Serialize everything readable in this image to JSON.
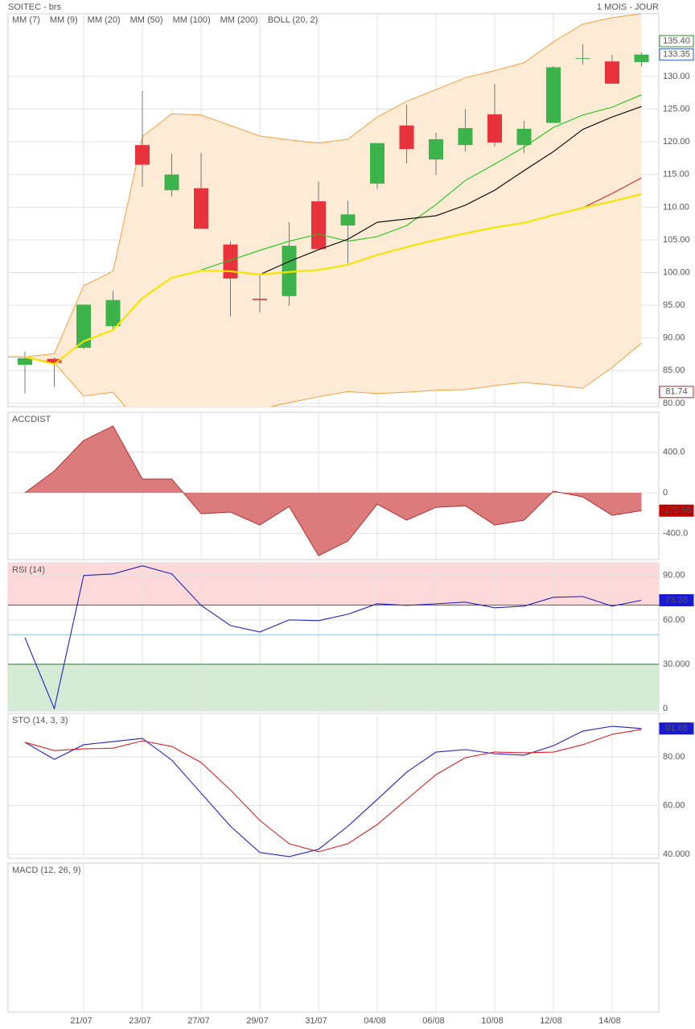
{
  "chart_data": [
    {
      "type": "candlestick",
      "title": "SOITEC - brs",
      "subtitle": "1 MOIS - JOUR",
      "categories": [
        null,
        null,
        "21/07",
        null,
        "23/07",
        null,
        "27/07",
        null,
        "29/07",
        null,
        "31/07",
        null,
        "04/08",
        null,
        "06/08",
        null,
        "10/08",
        null,
        "12/08",
        null,
        "14/08",
        null
      ],
      "open": [
        85.9,
        86.8,
        88.5,
        91.8,
        119.5,
        112.6,
        112.9,
        104.3,
        96.0,
        96.4,
        110.9,
        107.2,
        113.6,
        122.5,
        117.3,
        119.5,
        124.2,
        119.5,
        122.9,
        132.7,
        132.3,
        132.2
      ],
      "high": [
        87.9,
        87.0,
        95.1,
        97.2,
        127.8,
        118.2,
        118.3,
        104.8,
        99.7,
        107.7,
        113.9,
        111.0,
        119.8,
        125.7,
        121.4,
        125.0,
        128.9,
        123.2,
        131.6,
        134.9,
        133.3,
        133.7
      ],
      "low": [
        81.5,
        82.5,
        88.3,
        91.2,
        113.1,
        111.6,
        106.7,
        93.3,
        93.9,
        94.9,
        103.5,
        101.4,
        112.8,
        116.7,
        114.9,
        118.5,
        119.3,
        118.3,
        122.9,
        131.8,
        128.9,
        131.5
      ],
      "close": [
        86.9,
        86.2,
        95.1,
        95.8,
        116.5,
        115.0,
        106.7,
        99.1,
        95.8,
        104.1,
        103.6,
        108.9,
        119.8,
        118.9,
        120.4,
        122.1,
        119.9,
        122.0,
        131.4,
        132.8,
        128.9,
        133.35
      ],
      "up_color": "#3cb44b",
      "down_color": "#e8323c",
      "series": [
        {
          "name": "MM (7)",
          "color": "#19c919",
          "values": [
            null,
            null,
            null,
            null,
            null,
            null,
            100.4,
            101.9,
            103.4,
            104.8,
            105.9,
            104.8,
            105.5,
            107.2,
            110.4,
            114.1,
            116.6,
            119.2,
            122.2,
            124.1,
            125.3,
            127.2
          ]
        },
        {
          "name": "MM (9)",
          "color": "#000000",
          "values": [
            null,
            null,
            null,
            null,
            null,
            null,
            null,
            null,
            99.7,
            101.7,
            103.5,
            105.1,
            107.7,
            108.2,
            108.7,
            110.3,
            112.6,
            115.6,
            118.5,
            121.9,
            123.8,
            125.4
          ]
        },
        {
          "name": "MM (20)",
          "color": "#e02020",
          "values": [
            null,
            null,
            null,
            null,
            null,
            null,
            null,
            null,
            null,
            null,
            null,
            null,
            null,
            null,
            null,
            null,
            null,
            null,
            null,
            109.9,
            112.1,
            114.5
          ]
        },
        {
          "name": "MM (50)",
          "color": "#1a1ae0",
          "values": [
            null,
            null,
            null,
            null,
            null,
            null,
            null,
            null,
            null,
            null,
            null,
            null,
            null,
            null,
            null,
            null,
            null,
            null,
            null,
            null,
            null,
            null
          ]
        },
        {
          "name": "MM (100)",
          "color": "#e020e0",
          "values": [
            null,
            null,
            null,
            null,
            null,
            null,
            null,
            null,
            null,
            null,
            null,
            null,
            null,
            null,
            null,
            null,
            null,
            null,
            null,
            null,
            null,
            null
          ]
        },
        {
          "name": "MM (200)",
          "color": "#f5e400",
          "values": [
            87.1,
            86.0,
            89.5,
            91.2,
            96.1,
            99.2,
            100.3,
            100.2,
            99.7,
            100.1,
            100.4,
            101.2,
            102.7,
            103.9,
            105.0,
            106.0,
            106.9,
            107.6,
            108.8,
            109.9,
            110.9,
            112.0
          ]
        }
      ],
      "bands": {
        "name": "BOLL (20, 2)",
        "color": "#f5a040",
        "fill": "#fdebd6",
        "upper": [
          87.1,
          87.6,
          98.0,
          100.2,
          120.8,
          124.3,
          124.1,
          122.5,
          120.9,
          120.3,
          119.8,
          120.4,
          123.8,
          126.2,
          128.0,
          129.8,
          130.9,
          132.1,
          135.3,
          138.0,
          139.0,
          139.6
        ],
        "lower": [
          87.1,
          86.2,
          81.1,
          81.7,
          76.4,
          74.6,
          75.2,
          77.7,
          79.1,
          80.1,
          81.0,
          81.8,
          81.5,
          81.7,
          82.0,
          82.1,
          82.7,
          83.2,
          82.8,
          82.3,
          85.5,
          89.2
        ]
      },
      "ylim": [
        79.5,
        139.6
      ],
      "yticks": [
        {
          "value": 80,
          "label": "80.00"
        },
        {
          "value": 85,
          "label": "85.00"
        },
        {
          "value": 90,
          "label": "90.00"
        },
        {
          "value": 95,
          "label": "95.00"
        },
        {
          "value": 100,
          "label": "100.00"
        },
        {
          "value": 105,
          "label": "105.00"
        },
        {
          "value": 110,
          "label": "110.00"
        },
        {
          "value": 115,
          "label": "115.00"
        },
        {
          "value": 120,
          "label": "120.00"
        },
        {
          "value": 125,
          "label": "125.00"
        },
        {
          "value": 130,
          "label": "130.00"
        }
      ],
      "value_boxes": [
        {
          "value": 135.4,
          "label": "135.40",
          "color": "#2e8b2e",
          "filled": false
        },
        {
          "value": 133.35,
          "label": "133.35",
          "color": "#3050c0",
          "filled": false
        },
        {
          "value": 81.74,
          "label": "81.74",
          "color": "#c02020",
          "filled": false
        }
      ],
      "grid": true
    },
    {
      "type": "area",
      "title": "ACCDIST",
      "title_color": "#b03030",
      "color": "#b03030",
      "fill": "#dc7b7b",
      "values": [
        0,
        214,
        515,
        657,
        135,
        135,
        -206,
        -190,
        -317,
        -135,
        -618,
        -475,
        -111,
        -269,
        -143,
        -127,
        -317,
        -269,
        16,
        -40,
        -222,
        -175.55
      ],
      "ylim": [
        -657,
        792
      ],
      "yticks": [
        {
          "value": 400,
          "label": "400.0"
        },
        0,
        {
          "value": -400,
          "label": "-400.0"
        }
      ],
      "value_boxes": [
        {
          "value": -175.55,
          "label": "-175.55",
          "color": "#c00000",
          "filled": true
        }
      ],
      "grid": true
    },
    {
      "type": "line",
      "title": "RSI (14)",
      "title_color": "#2030a0",
      "series": [
        {
          "color": "#2020c0",
          "values": [
            48,
            0,
            90,
            91.1,
            96.6,
            91.1,
            69.8,
            56.2,
            51.8,
            60,
            59.5,
            63.8,
            70.9,
            69.8,
            70.9,
            72,
            68.2,
            69.3,
            75.3,
            75.8,
            69.3,
            73.28
          ]
        }
      ],
      "upper_zone": {
        "from": 70,
        "color": "#fdd9d9"
      },
      "lower_zone": {
        "to": 30,
        "color": "#d6ebd6"
      },
      "levels": [
        {
          "value": 70,
          "color": "#c03030"
        },
        {
          "value": 50,
          "color": "#8cc6e0"
        },
        {
          "value": 30,
          "color": "#2a7a2a"
        }
      ],
      "ylim": [
        -1.6,
        98.6
      ],
      "yticks": [
        {
          "value": 90,
          "label": "90.00"
        },
        {
          "value": 60,
          "label": "60.00"
        },
        {
          "value": 30,
          "label": "30.000"
        },
        0
      ],
      "value_boxes": [
        {
          "value": 73.28,
          "label": "73.28",
          "color": "#1a1ad0",
          "filled": true
        }
      ],
      "grid": true
    },
    {
      "type": "line",
      "title": "STO (14, 3, 3)",
      "title_color": "#2030a0",
      "series": [
        {
          "color": "#2020d0",
          "values": [
            86,
            79,
            85,
            86.3,
            87.6,
            78.7,
            65.1,
            51.5,
            40.7,
            39,
            42,
            51.5,
            62.5,
            73.7,
            82,
            83,
            81.3,
            80.7,
            84.6,
            90.6,
            92.6,
            91.68
          ]
        },
        {
          "color": "#e02020",
          "values": [
            86,
            82.6,
            83.3,
            83.6,
            86.6,
            84.3,
            77.7,
            66.4,
            53.9,
            44.3,
            41,
            44.3,
            52.2,
            62.5,
            72.7,
            79.7,
            82,
            81.7,
            82,
            85,
            89.3,
            91.3
          ]
        }
      ],
      "ylim": [
        38.3,
        97.9
      ],
      "yticks": [
        {
          "value": 80,
          "label": "80.00"
        },
        {
          "value": 60,
          "label": "60.00"
        },
        {
          "value": 40,
          "label": "40.000"
        }
      ],
      "value_boxes": [
        {
          "value": 91.68,
          "label": "91.68",
          "color": "#1a1ad0",
          "filled": true
        }
      ],
      "grid": true
    },
    {
      "type": "line",
      "title": "MACD (12, 26, 9)",
      "title_color": "#2030a0",
      "series": [],
      "grid": true
    }
  ]
}
